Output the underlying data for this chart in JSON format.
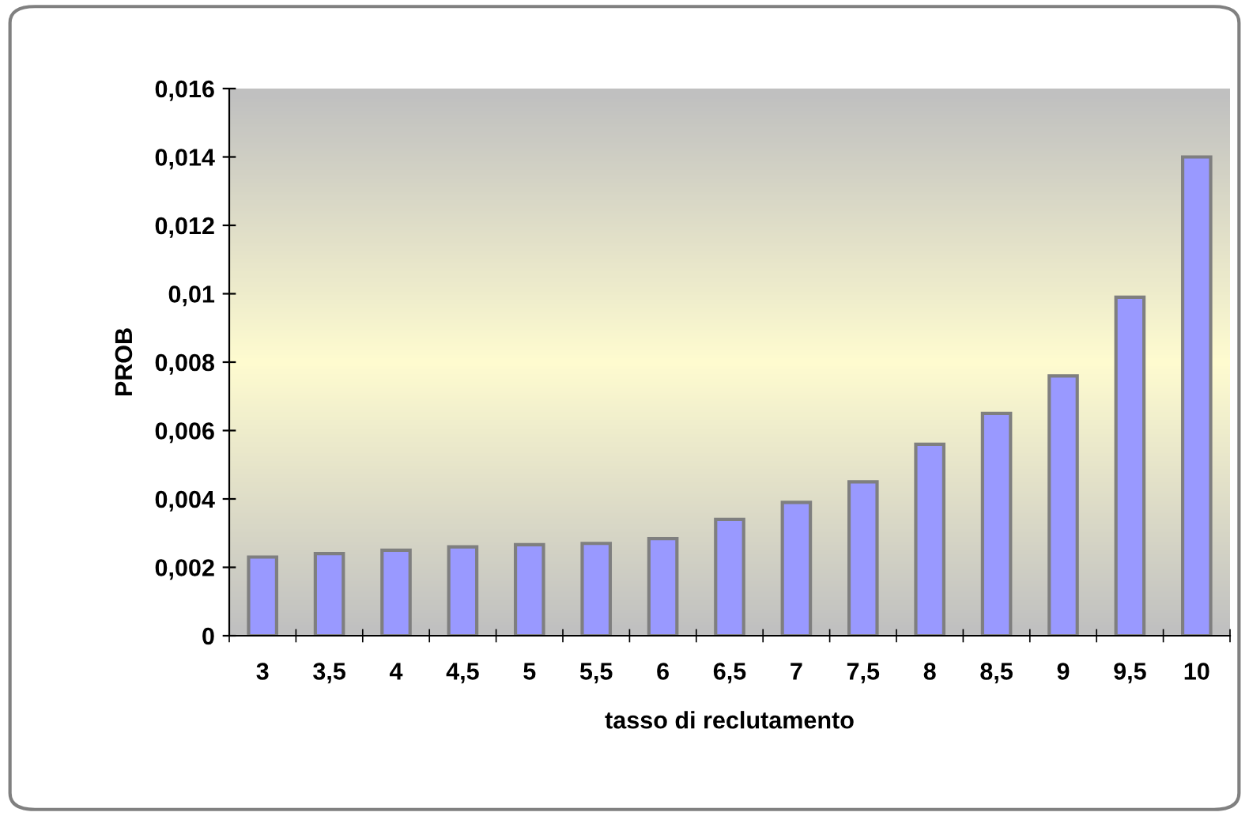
{
  "chart_data": {
    "type": "bar",
    "xlabel": "tasso di reclutamento",
    "ylabel": "PROB",
    "categories": [
      "3",
      "3,5",
      "4",
      "4,5",
      "5",
      "5,5",
      "6",
      "6,5",
      "7",
      "7,5",
      "8",
      "8,5",
      "9",
      "9,5",
      "10"
    ],
    "values": [
      0.0023,
      0.0024,
      0.0025,
      0.0026,
      0.00266,
      0.0027,
      0.00284,
      0.0034,
      0.0039,
      0.0045,
      0.0056,
      0.0065,
      0.0076,
      0.0099,
      0.014
    ],
    "color": "#9999ff",
    "ylim": [
      0,
      0.016
    ],
    "yticks": [
      {
        "value": 0,
        "label": "0"
      },
      {
        "value": 0.002,
        "label": "0,002"
      },
      {
        "value": 0.004,
        "label": "0,004"
      },
      {
        "value": 0.006,
        "label": "0,006"
      },
      {
        "value": 0.008,
        "label": "0,008"
      },
      {
        "value": 0.01,
        "label": "0,01"
      },
      {
        "value": 0.012,
        "label": "0,012"
      },
      {
        "value": 0.014,
        "label": "0,014"
      },
      {
        "value": 0.016,
        "label": "0,016"
      }
    ],
    "grid": false,
    "legend": false
  }
}
